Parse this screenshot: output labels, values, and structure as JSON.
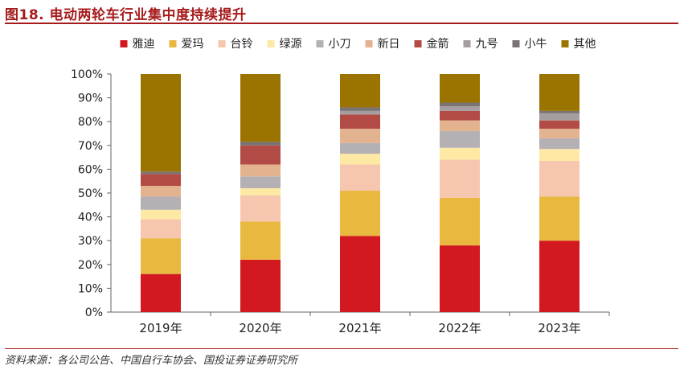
{
  "header": {
    "title": "图18. 电动两轮车行业集中度持续提升"
  },
  "footer": {
    "source": "资料来源：各公司公告、中国自行车协会、国投证券证券研究所"
  },
  "chart_data": {
    "type": "bar",
    "stacked": true,
    "title": "图18. 电动两轮车行业集中度持续提升",
    "categories": [
      "2019年",
      "2020年",
      "2021年",
      "2022年",
      "2023年"
    ],
    "ylim": [
      0,
      100
    ],
    "yticks": [
      "0%",
      "10%",
      "20%",
      "30%",
      "40%",
      "50%",
      "60%",
      "70%",
      "80%",
      "90%",
      "100%"
    ],
    "legend_position": "top",
    "grid": false,
    "series": [
      {
        "name": "雅迪",
        "color": "#d2191f",
        "values": [
          16,
          22,
          32,
          28,
          30
        ]
      },
      {
        "name": "爱玛",
        "color": "#e9b83f",
        "values": [
          15,
          16,
          19,
          20,
          18.5
        ]
      },
      {
        "name": "台铃",
        "color": "#f6c6ae",
        "values": [
          8,
          11,
          11,
          16,
          15
        ]
      },
      {
        "name": "绿源",
        "color": "#fde9a3",
        "values": [
          4,
          3,
          4.5,
          5,
          5
        ]
      },
      {
        "name": "小刀",
        "color": "#b4b0b4",
        "values": [
          5.5,
          5,
          4.5,
          7,
          4.5
        ]
      },
      {
        "name": "新日",
        "color": "#e3b390",
        "values": [
          4.5,
          5,
          6,
          4.5,
          4
        ]
      },
      {
        "name": "金箭",
        "color": "#b24a45",
        "values": [
          5,
          8,
          6,
          4,
          3.5
        ]
      },
      {
        "name": "九号",
        "color": "#a59e9f",
        "values": [
          0,
          0,
          1.5,
          2,
          3
        ]
      },
      {
        "name": "小牛",
        "color": "#797373",
        "values": [
          1,
          1.5,
          1.5,
          1.5,
          1
        ]
      },
      {
        "name": "其他",
        "color": "#9b7400",
        "values": [
          41,
          28.5,
          14,
          12,
          15.5
        ]
      }
    ]
  }
}
